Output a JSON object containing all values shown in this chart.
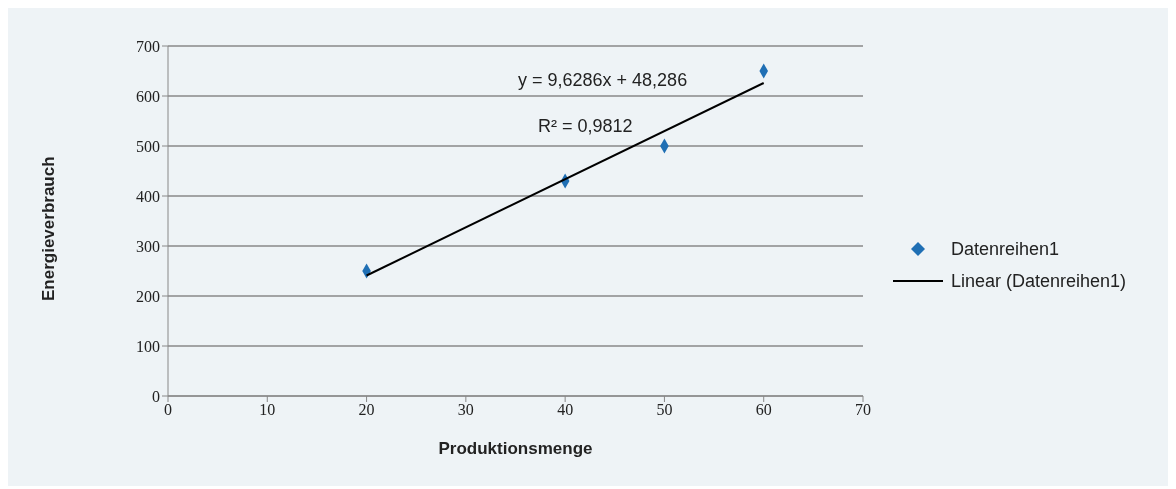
{
  "chart_data": {
    "type": "scatter",
    "xlabel": "Produktionsmenge",
    "ylabel": "Energieverbrauch",
    "series": [
      {
        "name": "Datenreihen1",
        "color": "#1f6fb4",
        "marker": "diamond",
        "x": [
          20,
          40,
          50,
          60
        ],
        "values": [
          250,
          430,
          500,
          650
        ]
      },
      {
        "name": "Linear (Datenreihen1)",
        "type": "line",
        "color": "#000000",
        "line_style": "solid",
        "x": [
          20,
          60
        ],
        "values": [
          241,
          626
        ]
      }
    ],
    "annotations": [
      "y = 9,6286x + 48,286",
      "R² = 0,9812"
    ],
    "xlim": [
      0,
      70
    ],
    "xticks": [
      0,
      10,
      20,
      30,
      40,
      50,
      60,
      70
    ],
    "ylim": [
      0,
      700
    ],
    "yticks": [
      0,
      100,
      200,
      300,
      400,
      500,
      600,
      700
    ],
    "grid": "y",
    "legend": "right"
  }
}
